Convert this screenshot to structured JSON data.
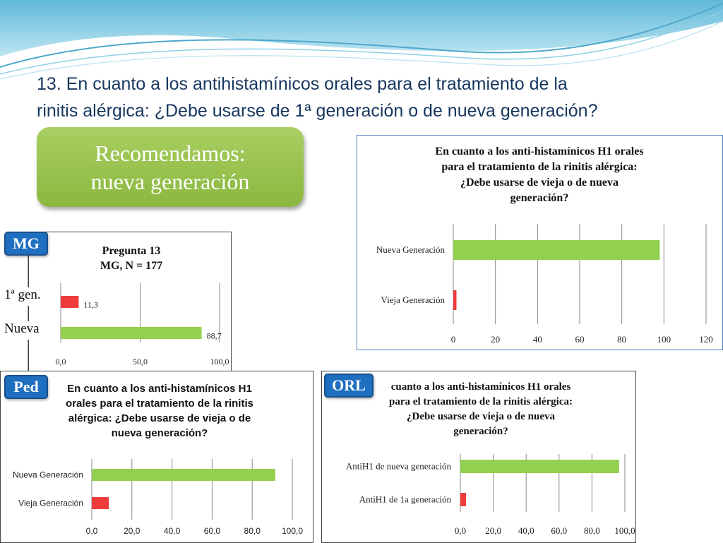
{
  "slide": {
    "title_line1": "13. En cuanto a los antihistamínicos orales para el tratamiento de la",
    "title_line2": "rinitis alérgica: ¿Debe usarse de 1ª generación o de nueva generación?",
    "recommendation_line1": "Recomendamos:",
    "recommendation_line2": "nueva generación",
    "colors": {
      "title": "#17375e",
      "green": "#92d050",
      "red": "#ee3c3c",
      "badge": "#1f6fc1"
    }
  },
  "badges": {
    "mg": "MG",
    "ped": "Ped",
    "orl": "ORL"
  },
  "side_labels": {
    "first_gen": "1ª gen.",
    "new_gen": "Nueva"
  },
  "chart_titles": {
    "mg_line1": "Pregunta 13",
    "mg_line2": "MG, N = 177",
    "general_line1": "En cuanto a los anti-histamínicos H1 orales",
    "general_line2": "para el tratamiento de la rinitis alérgica:",
    "general_line3": "¿Debe usarse de vieja o de nueva",
    "general_line4": "generación?",
    "ped_line1": "En cuanto a los anti-histamínicos H1",
    "ped_line2": "orales para el tratamiento de la rinitis",
    "ped_line3": "alérgica: ¿Debe usarse de vieja o de",
    "ped_line4": "nueva generación?",
    "orl_line1": "cuanto a los anti-histamínicos H1 orales",
    "orl_line2": "para el tratamiento de la rinitis alérgica:",
    "orl_line3": "¿Debe usarse de vieja o de nueva",
    "orl_line4": "generación?"
  },
  "chart_data": [
    {
      "id": "mg",
      "type": "bar",
      "orientation": "horizontal",
      "title": "Pregunta 13 MG, N = 177",
      "categories": [
        "",
        ""
      ],
      "values": [
        11.3,
        88.7
      ],
      "data_labels": [
        "11,3",
        "88,7"
      ],
      "colors": [
        "#ee3c3c",
        "#92d050"
      ],
      "xlim": [
        0,
        100
      ],
      "ticks": [
        "0,0",
        "50,0",
        "100,0"
      ],
      "grid": true
    },
    {
      "id": "general",
      "type": "bar",
      "orientation": "horizontal",
      "title": "En cuanto a los anti-histamínicos H1 orales para el tratamiento de la rinitis alérgica: ¿Debe usarse de vieja o de nueva generación?",
      "categories": [
        "Nueva Generación",
        "Vieja Generación"
      ],
      "values": [
        98,
        1.5
      ],
      "colors": [
        "#92d050",
        "#ee3c3c"
      ],
      "xlim": [
        0,
        120
      ],
      "ticks": [
        "0",
        "20",
        "40",
        "60",
        "80",
        "100",
        "120"
      ],
      "grid": true
    },
    {
      "id": "ped",
      "type": "bar",
      "orientation": "horizontal",
      "title": "En cuanto a los anti-histamínicos H1 orales para el tratamiento de la rinitis alérgica: ¿Debe usarse de vieja o de nueva generación?",
      "categories": [
        "Nueva Generación",
        "Vieja Generación"
      ],
      "values": [
        91.5,
        8.5
      ],
      "colors": [
        "#92d050",
        "#ee3c3c"
      ],
      "xlim": [
        0,
        100
      ],
      "ticks": [
        "0,0",
        "20,0",
        "40,0",
        "60,0",
        "80,0",
        "100,0"
      ],
      "grid": true
    },
    {
      "id": "orl",
      "type": "bar",
      "orientation": "horizontal",
      "title": "cuanto a los anti-histamínicos H1 orales para el tratamiento de la rinitis alérgica: ¿Debe usarse de vieja o de nueva generación?",
      "categories": [
        "AntiH1 de nueva generación",
        "AntiH1 de 1a generación"
      ],
      "values": [
        96.5,
        3.5
      ],
      "colors": [
        "#92d050",
        "#ee3c3c"
      ],
      "xlim": [
        0,
        100
      ],
      "ticks": [
        "0,0",
        "20,0",
        "40,0",
        "60,0",
        "80,0",
        "100,0"
      ],
      "grid": true
    }
  ]
}
